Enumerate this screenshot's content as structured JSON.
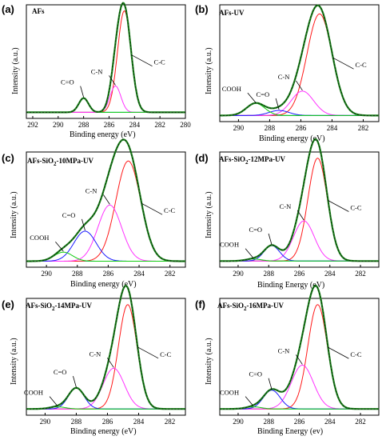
{
  "colors": {
    "fit": "#1a7f1a",
    "cc": "#ff1a1a",
    "cn": "#ff33ff",
    "co": "#1a1aff",
    "cooh": "#11cc11",
    "bg": "#11aaaa"
  },
  "chart_data": [
    {
      "type": "line",
      "panel_label": "(a)",
      "title": "AFs",
      "xlabel": "Binding energy (eV)",
      "ylabel": "Intensity (a.u.)",
      "x_ticks": [
        292,
        290,
        288,
        286,
        284,
        282,
        280
      ],
      "xlim": [
        292.5,
        280
      ],
      "ylim": [
        0,
        1.12
      ],
      "x_reversed": true,
      "peaks": [
        {
          "name": "C-C",
          "center": 284.8,
          "height": 1.0,
          "fwhm": 1.25,
          "color": "cc"
        },
        {
          "name": "C-N",
          "center": 285.5,
          "height": 0.26,
          "fwhm": 1.0,
          "color": "cn"
        },
        {
          "name": "C=O",
          "center": 288.0,
          "height": 0.14,
          "fwhm": 0.9,
          "color": "cooh"
        }
      ],
      "annotations": [
        {
          "text": "C-C",
          "peak": "C-C"
        },
        {
          "text": "C-N",
          "peak": "C-N"
        },
        {
          "text": "C=O",
          "peak": "C=O"
        }
      ]
    },
    {
      "type": "line",
      "panel_label": "(b)",
      "title": "AFs-UV",
      "xlabel": "Binding energy (eV)",
      "ylabel": "Intensity (a.u.)",
      "x_ticks": [
        290,
        288,
        286,
        284,
        282
      ],
      "xlim": [
        291.2,
        281
      ],
      "ylim": [
        0,
        1.15
      ],
      "x_reversed": true,
      "peaks": [
        {
          "name": "C-C",
          "center": 284.8,
          "height": 1.0,
          "fwhm": 1.9,
          "color": "cc"
        },
        {
          "name": "C-N",
          "center": 285.9,
          "height": 0.24,
          "fwhm": 1.7,
          "color": "cn"
        },
        {
          "name": "C=O",
          "center": 287.4,
          "height": 0.05,
          "fwhm": 1.5,
          "color": "co"
        },
        {
          "name": "COOH",
          "center": 288.9,
          "height": 0.12,
          "fwhm": 1.4,
          "color": "cooh"
        }
      ],
      "annotations": [
        {
          "text": "C-C",
          "peak": "C-C"
        },
        {
          "text": "C-N",
          "peak": "C-N"
        },
        {
          "text": "C=O",
          "peak": "C=O"
        },
        {
          "text": "COOH",
          "peak": "COOH"
        }
      ]
    },
    {
      "type": "line",
      "panel_label": "(c)",
      "title": "AFs-SiO2-10MPa-UV",
      "title_main": "AFs-SiO",
      "title_sub": "2",
      "title_rest": "-10MPa-UV",
      "xlabel": "Binding energy (eV)",
      "ylabel": "Intensity (a.u.)",
      "x_ticks": [
        290,
        288,
        286,
        284,
        282
      ],
      "xlim": [
        291.3,
        281
      ],
      "ylim": [
        0,
        1.15
      ],
      "x_reversed": true,
      "peaks": [
        {
          "name": "C-C",
          "center": 284.7,
          "height": 1.0,
          "fwhm": 1.9,
          "color": "cc"
        },
        {
          "name": "C-N",
          "center": 285.9,
          "height": 0.56,
          "fwhm": 1.8,
          "color": "cn"
        },
        {
          "name": "C=O",
          "center": 287.5,
          "height": 0.3,
          "fwhm": 1.7,
          "color": "co"
        },
        {
          "name": "COOH",
          "center": 288.9,
          "height": 0.09,
          "fwhm": 1.4,
          "color": "cooh"
        }
      ],
      "annotations": [
        {
          "text": "C-C",
          "peak": "C-C"
        },
        {
          "text": "C-N",
          "peak": "C-N"
        },
        {
          "text": "C=O",
          "peak": "C=O"
        },
        {
          "text": "COOH",
          "peak": "COOH"
        }
      ]
    },
    {
      "type": "line",
      "panel_label": "(d)",
      "title": "AFs-SiO2-12MPa-UV",
      "title_main": "AFs-SiO",
      "title_sub": "2",
      "title_rest": "-12MPa-UV",
      "xlabel": "Binding Energy (eV)",
      "ylabel": "Intensity (a.u.)",
      "x_ticks": [
        290,
        288,
        286,
        284,
        282
      ],
      "xlim": [
        291.2,
        280.8
      ],
      "ylim": [
        0,
        1.12
      ],
      "x_reversed": true,
      "peaks": [
        {
          "name": "C-C",
          "center": 284.8,
          "height": 1.0,
          "fwhm": 1.5,
          "color": "cc"
        },
        {
          "name": "C-N",
          "center": 285.7,
          "height": 0.39,
          "fwhm": 1.6,
          "color": "cn"
        },
        {
          "name": "C=O",
          "center": 287.8,
          "height": 0.15,
          "fwhm": 1.2,
          "color": "co"
        },
        {
          "name": "COOH",
          "center": 289.0,
          "height": 0.02,
          "fwhm": 1.2,
          "color": "cooh"
        }
      ],
      "annotations": [
        {
          "text": "C-C",
          "peak": "C-C"
        },
        {
          "text": "C-N",
          "peak": "C-N"
        },
        {
          "text": "C=O",
          "peak": "C=O"
        },
        {
          "text": "COOH",
          "peak": "COOH"
        }
      ]
    },
    {
      "type": "line",
      "panel_label": "(e)",
      "title": "AFs-SiO2-14MPa-UV",
      "title_main": "AFs-SiO",
      "title_sub": "2",
      "title_rest": "-14MPa-UV",
      "xlabel": "Binding energy (eV)",
      "ylabel": "Intensity (a.u.)",
      "x_ticks": [
        290,
        288,
        286,
        284,
        282
      ],
      "xlim": [
        291.2,
        281
      ],
      "ylim": [
        0,
        1.12
      ],
      "x_reversed": true,
      "peaks": [
        {
          "name": "C-C",
          "center": 284.7,
          "height": 1.0,
          "fwhm": 1.4,
          "color": "cc"
        },
        {
          "name": "C-N",
          "center": 285.6,
          "height": 0.39,
          "fwhm": 1.6,
          "color": "cn"
        },
        {
          "name": "C=O",
          "center": 288.0,
          "height": 0.2,
          "fwhm": 1.2,
          "color": "co"
        },
        {
          "name": "COOH",
          "center": 289.2,
          "height": 0.02,
          "fwhm": 1.2,
          "color": "cooh"
        }
      ],
      "annotations": [
        {
          "text": "C-C",
          "peak": "C-C"
        },
        {
          "text": "C-N",
          "peak": "C-N"
        },
        {
          "text": "C=O",
          "peak": "C=O"
        },
        {
          "text": "COOH",
          "peak": "COOH"
        }
      ]
    },
    {
      "type": "line",
      "panel_label": "(f)",
      "title": "AFs-SiO2-16MPa-UV",
      "title_main": "AFs-SiO",
      "title_sub": "2",
      "title_rest": "-16MPa-UV",
      "xlabel": "Binding Energy (ev)",
      "ylabel": "Intensity (a.u.)",
      "x_ticks": [
        290,
        288,
        286,
        284,
        282
      ],
      "xlim": [
        291.2,
        280.8
      ],
      "ylim": [
        0,
        1.12
      ],
      "x_reversed": true,
      "peaks": [
        {
          "name": "C-C",
          "center": 284.8,
          "height": 1.0,
          "fwhm": 1.5,
          "color": "cc"
        },
        {
          "name": "C-N",
          "center": 285.8,
          "height": 0.42,
          "fwhm": 1.7,
          "color": "cn"
        },
        {
          "name": "C=O",
          "center": 287.8,
          "height": 0.18,
          "fwhm": 1.3,
          "color": "co"
        },
        {
          "name": "COOH",
          "center": 289.0,
          "height": 0.02,
          "fwhm": 1.2,
          "color": "cooh"
        }
      ],
      "annotations": [
        {
          "text": "C-C",
          "peak": "C-C"
        },
        {
          "text": "C-N",
          "peak": "C-N"
        },
        {
          "text": "C=O",
          "peak": "C=O"
        },
        {
          "text": "COOH",
          "peak": "COOH"
        }
      ]
    }
  ]
}
